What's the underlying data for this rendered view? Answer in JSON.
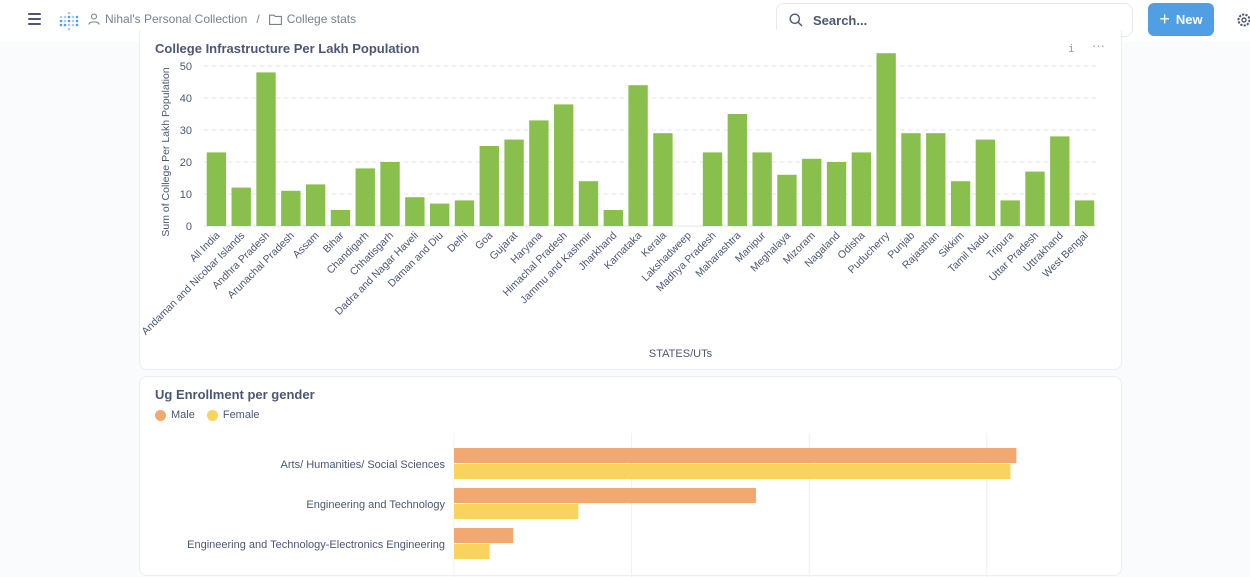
{
  "topbar": {
    "menu_icon": "hamburger-icon",
    "logo_icon": "metabase-logo",
    "breadcrumb": [
      {
        "icon": "person-icon",
        "label": "Nihal's Personal Collection"
      },
      {
        "icon": "folder-icon",
        "label": "College stats"
      }
    ],
    "breadcrumb_separator": "/",
    "search_placeholder": "Search...",
    "new_button_label": "New",
    "settings_icon": "gear-icon"
  },
  "cards": {
    "infra": {
      "title": "College Infrastructure Per Lakh Population",
      "info_label": "i",
      "more_label": "···"
    },
    "ug": {
      "title": "Ug Enrollment per gender"
    }
  },
  "chart_data": [
    {
      "type": "bar",
      "title": "College Infrastructure Per Lakh Population",
      "xlabel": "STATES/UTs",
      "ylabel": "Sum of College Per Lakh Population",
      "ylim": [
        0,
        55
      ],
      "yticks": [
        0,
        10,
        20,
        30,
        40,
        50
      ],
      "grid": true,
      "color": "#88bf4d",
      "categories": [
        "All India",
        "Andaman and Nicobar Islands",
        "Andhra Pradesh",
        "Arunachal Pradesh",
        "Assam",
        "Bihar",
        "Chandigarh",
        "Chhatisgarh",
        "Dadra and Nagar Haveli",
        "Daman and Diu",
        "Delhi",
        "Goa",
        "Gujarat",
        "Haryana",
        "Himachal Pradesh",
        "Jammu and Kashmir",
        "Jharkhand",
        "Karnataka",
        "Kerala",
        "Lakshadweep",
        "Madhya Pradesh",
        "Maharashtra",
        "Manipur",
        "Meghalaya",
        "Mizoram",
        "Nagaland",
        "Odisha",
        "Puducherry",
        "Punjab",
        "Rajasthan",
        "Sikkim",
        "Tamil Nadu",
        "Tripura",
        "Uttar Pradesh",
        "Uttrakhand",
        "West Bengal"
      ],
      "values": [
        23,
        12,
        48,
        11,
        13,
        5,
        18,
        20,
        9,
        7,
        8,
        25,
        27,
        33,
        38,
        14,
        5,
        44,
        29,
        0,
        23,
        35,
        23,
        16,
        21,
        20,
        23,
        54,
        29,
        29,
        14,
        27,
        8,
        17,
        28,
        8
      ]
    },
    {
      "type": "bar",
      "orientation": "horizontal",
      "title": "Ug Enrollment per gender",
      "legend": [
        "Male",
        "Female"
      ],
      "legend_position": "top-left",
      "grid": true,
      "categories": [
        "Arts/ Humanities/ Social Sciences",
        "Engineering and Technology",
        "Engineering and Technology-Electronics Engineering"
      ],
      "series": [
        {
          "name": "Male",
          "color": "#f2a86f",
          "values": [
            0.95,
            0.51,
            0.1
          ]
        },
        {
          "name": "Female",
          "color": "#f9d45c",
          "values": [
            0.94,
            0.21,
            0.06
          ]
        }
      ],
      "value_unit": "fraction of axis width (axis ticks not visible)"
    }
  ]
}
